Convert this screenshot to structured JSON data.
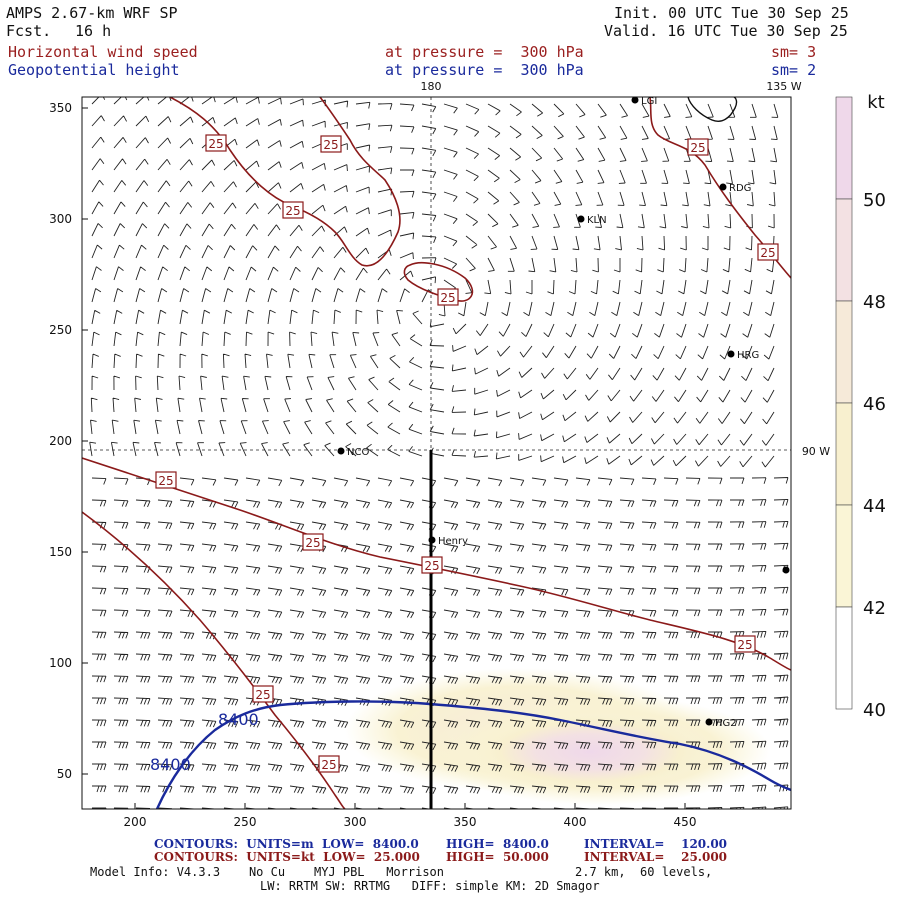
{
  "header": {
    "model": "AMPS 2.67-km WRF SP",
    "fcst_label": "Fcst.",
    "fcst_value": "16 h",
    "init": "Init. 00 UTC Tue 30 Sep 25",
    "valid": "Valid. 16 UTC Tue 30 Sep 25",
    "field1_name": "Horizontal wind speed",
    "field1_level": "at pressure =  300 hPa",
    "field1_sm": "sm= 3",
    "field2_name": "Geopotential height",
    "field2_level": "at pressure =  300 hPa",
    "field2_sm": "sm= 2"
  },
  "map": {
    "x_ticks": [
      "200",
      "250",
      "300",
      "350",
      "400",
      "450"
    ],
    "y_ticks": [
      "350",
      "300",
      "250",
      "200",
      "150",
      "100",
      "50"
    ],
    "meridian_label": "180",
    "meridian_label2": "135 W",
    "parallel_label": "90 W",
    "stations": [
      {
        "name": "LGI"
      },
      {
        "name": "RDG"
      },
      {
        "name": "KLN"
      },
      {
        "name": "HRG"
      },
      {
        "name": "NCO"
      },
      {
        "name": "Henry"
      },
      {
        "name": "HG2"
      }
    ],
    "wind_labels": [
      "25",
      "25",
      "25",
      "25",
      "25",
      "25",
      "25",
      "25",
      "25",
      "25",
      "25",
      "25"
    ],
    "height_labels": [
      "8400",
      "8400"
    ]
  },
  "colorbar": {
    "unit": "kt",
    "labels": [
      "50",
      "48",
      "46",
      "44",
      "42",
      "40"
    ],
    "colors": [
      "#efd8ea",
      "#f3e1e3",
      "#f6ead9",
      "#f8f0cf",
      "#faf5d6",
      "#ffffff"
    ]
  },
  "footer": {
    "line1_a": "CONTOURS:  UNITS=m  LOW=  8400.0",
    "line1_b": "HIGH=  8400.0",
    "line1_c": "INTERVAL=    120.00",
    "line2_a": "CONTOURS:  UNITS=kt  LOW=  25.000",
    "line2_b": "HIGH=  50.000",
    "line2_c": "INTERVAL=    25.000",
    "model_info": "Model Info: V4.3.3    No Cu    MYJ PBL   Morrison",
    "model_info2": "2.7 km,  60 levels,",
    "model_info3": "LW: RRTM SW: RRTMG   DIFF: simple KM: 2D Smagor"
  },
  "colors": {
    "wind_contour": "#8b1a1a",
    "height_contour": "#1a2a9c"
  }
}
